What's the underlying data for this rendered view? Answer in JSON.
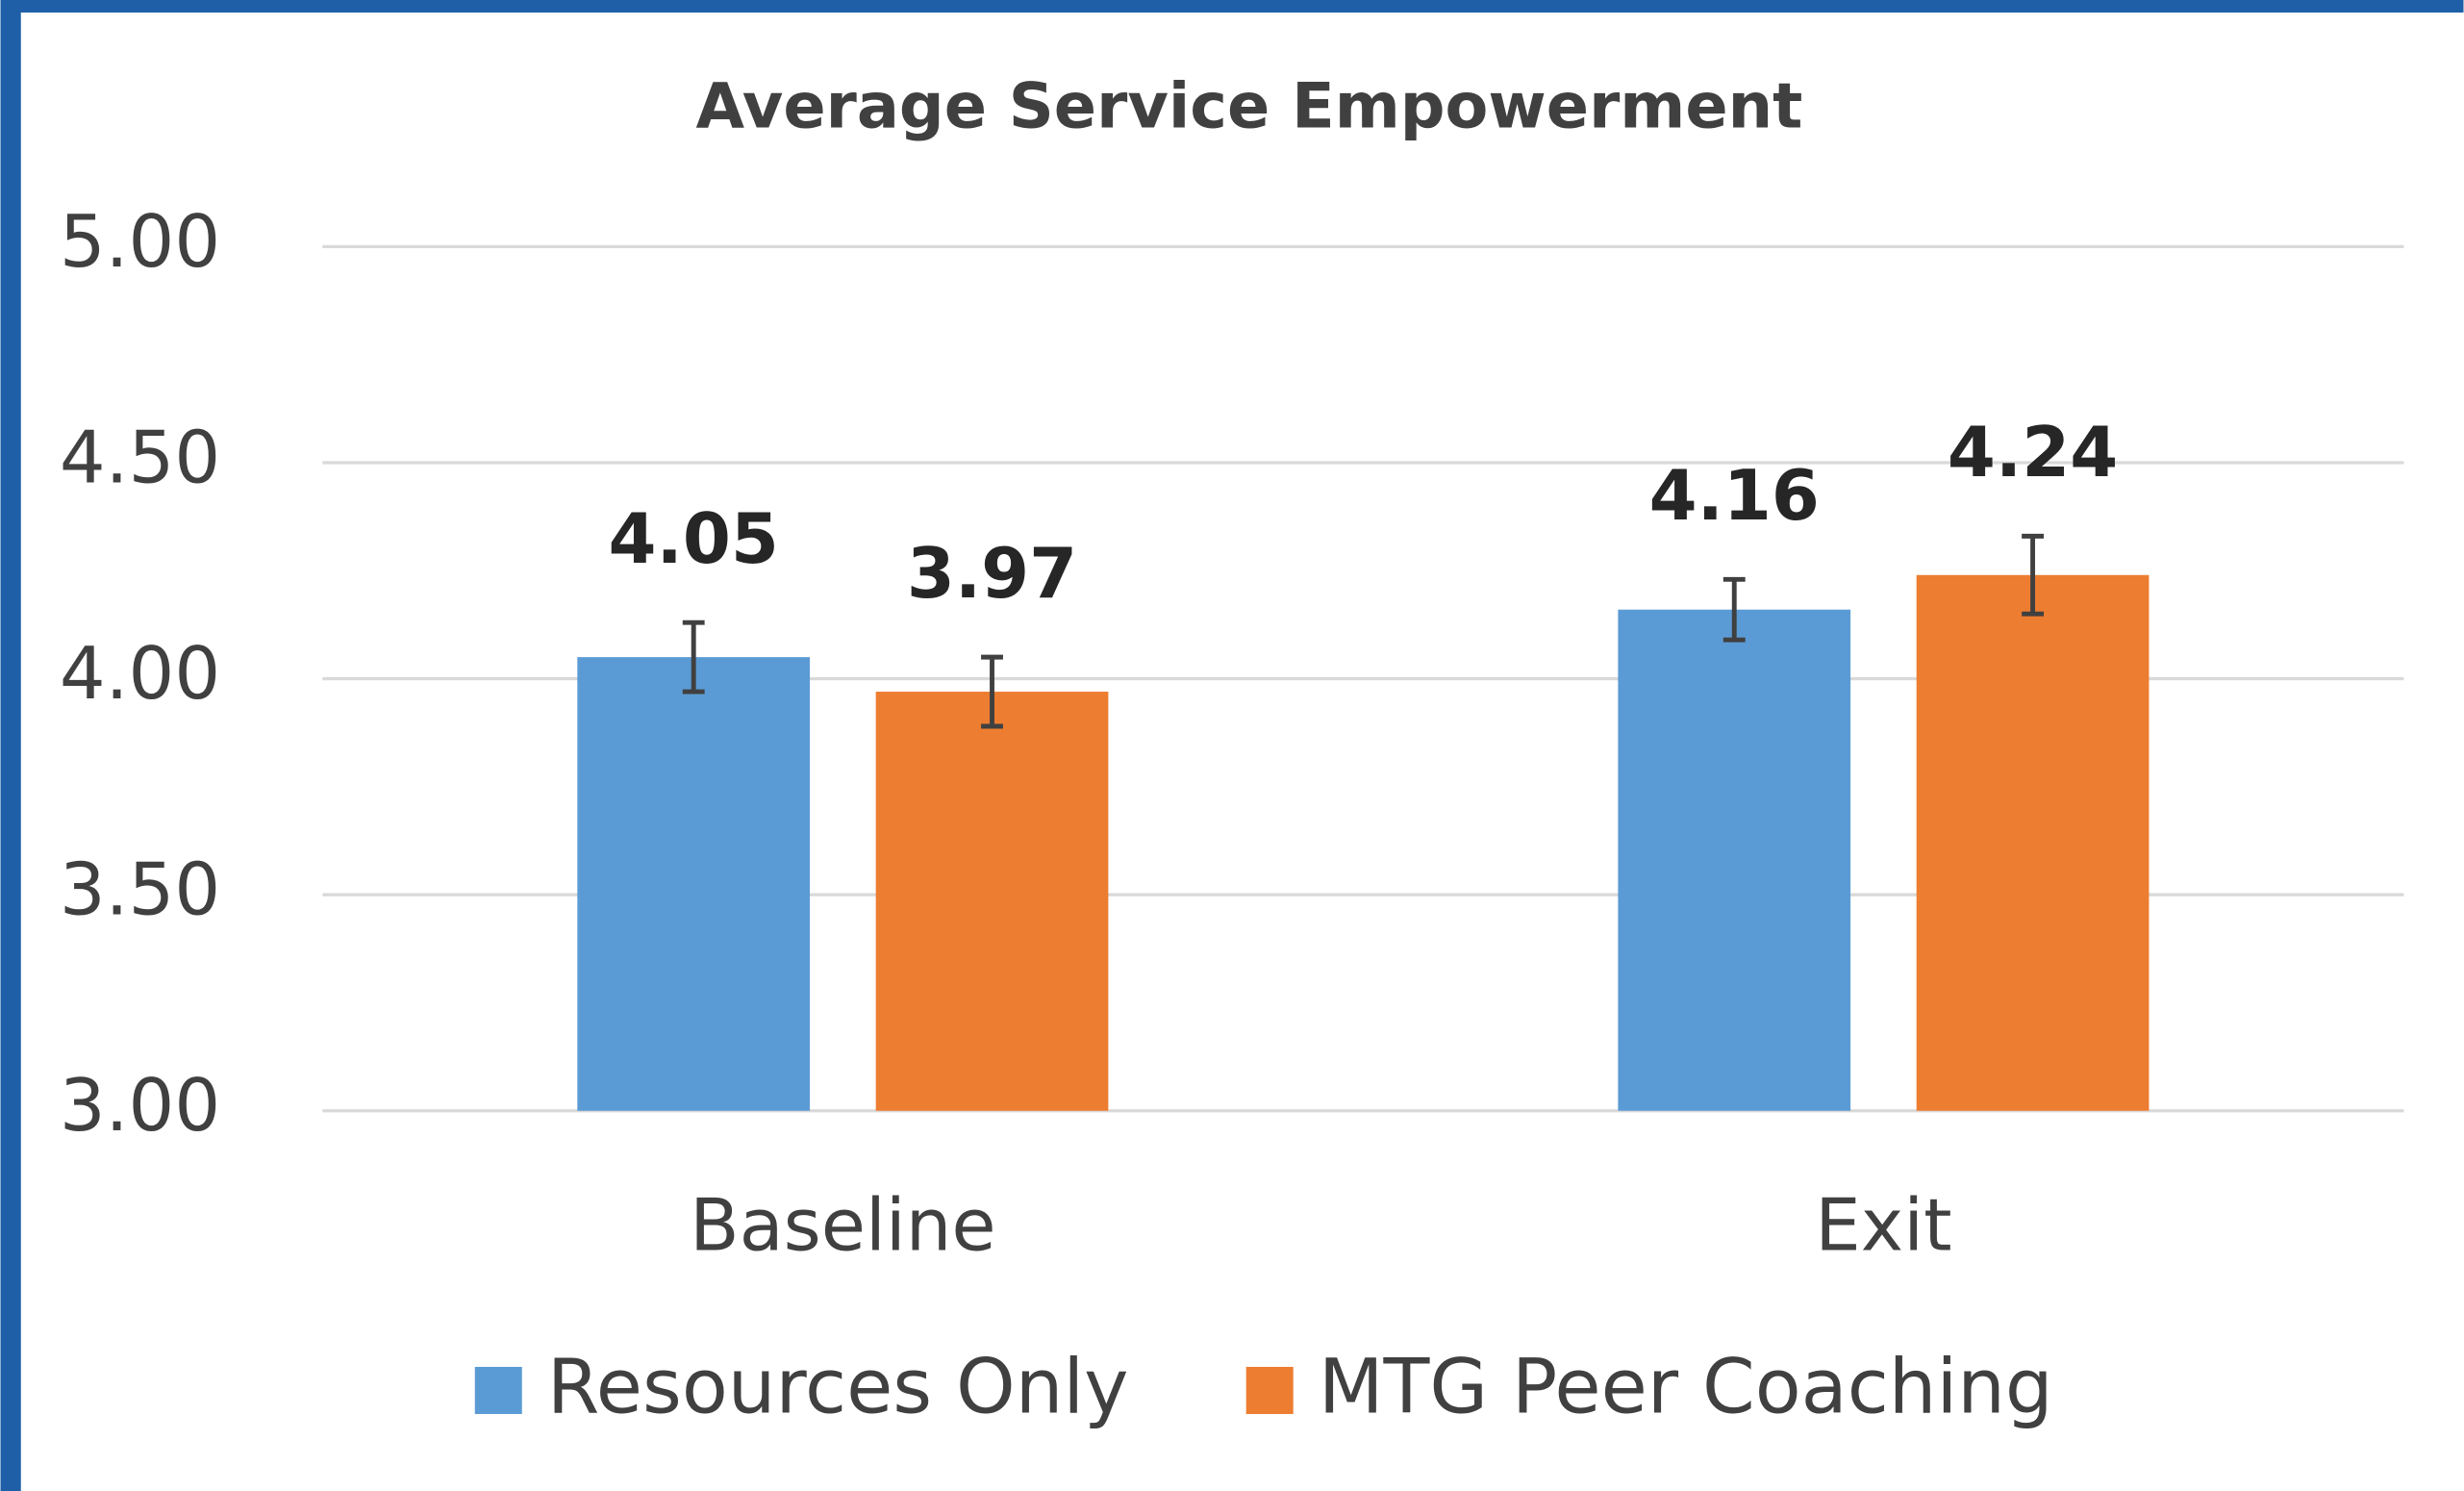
{
  "chart_data": {
    "type": "bar",
    "title": "Average Service Empowerment",
    "categories": [
      "Baseline",
      "Exit"
    ],
    "series": [
      {
        "name": "Resources Only",
        "color": "#5b9bd5",
        "values": [
          4.05,
          4.16
        ],
        "errors": [
          0.08,
          0.07
        ]
      },
      {
        "name": "MTG Peer Coaching",
        "color": "#ed7d31",
        "values": [
          3.97,
          4.24
        ],
        "errors": [
          0.08,
          0.09
        ]
      }
    ],
    "ylim": [
      3,
      5
    ],
    "yticks": [
      {
        "value": 3,
        "label": "3.00"
      },
      {
        "value": 3.5,
        "label": "3.50"
      },
      {
        "value": 4,
        "label": "4.00"
      },
      {
        "value": 4.5,
        "label": "4.50"
      },
      {
        "value": 5,
        "label": "5.00"
      }
    ],
    "grid": true,
    "legend": "bottom"
  }
}
